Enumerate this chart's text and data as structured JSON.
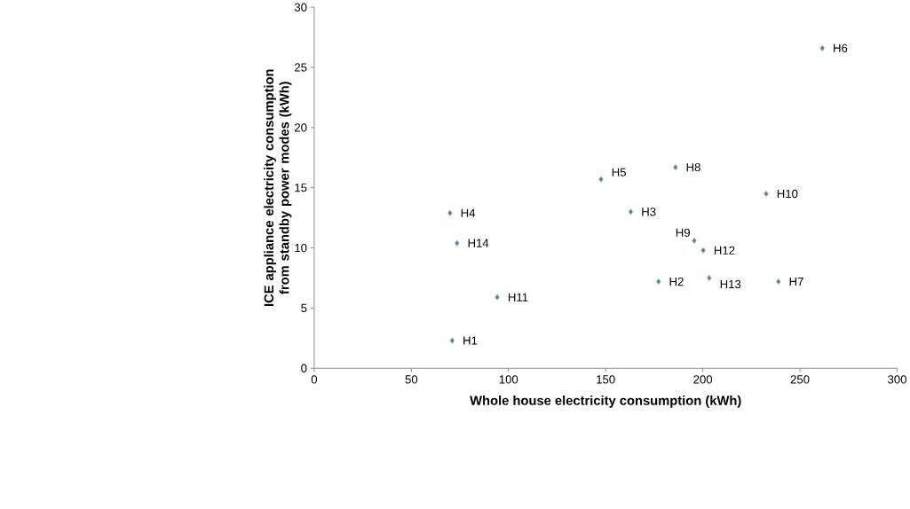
{
  "chart_data": {
    "type": "scatter",
    "xlabel": "Whole house electricity consumption (kWh)",
    "ylabel": "ICE appliance electricity consumption from standby power modes (kWh)",
    "x": [
      71.0,
      177.2,
      162.9,
      69.9,
      147.6,
      261.5,
      238.9,
      185.9,
      195.6,
      232.6,
      94.2,
      200.2,
      203.3,
      73.5
    ],
    "values": [
      2.3,
      7.2,
      13.0,
      12.9,
      15.7,
      26.6,
      7.2,
      16.7,
      10.6,
      14.5,
      5.9,
      9.8,
      7.5,
      10.4
    ],
    "color": "#4f81bd",
    "marker": "diamond",
    "grid": false,
    "xlim": [
      0,
      300
    ],
    "ylim": [
      0,
      30
    ],
    "xticks": [
      0,
      50,
      100,
      150,
      200,
      250,
      300
    ],
    "yticks": [
      0,
      5,
      10,
      15,
      20,
      25,
      30
    ],
    "annotations": [
      {
        "text": "H1",
        "x": 71.0,
        "y": 2.3
      },
      {
        "text": "H2",
        "x": 177.2,
        "y": 7.2
      },
      {
        "text": "H3",
        "x": 162.9,
        "y": 13.0
      },
      {
        "text": "H4",
        "x": 69.9,
        "y": 12.9
      },
      {
        "text": "H5",
        "x": 147.6,
        "y": 15.7
      },
      {
        "text": "H6",
        "x": 261.5,
        "y": 26.6
      },
      {
        "text": "H7",
        "x": 238.9,
        "y": 7.2
      },
      {
        "text": "H8",
        "x": 185.9,
        "y": 16.7
      },
      {
        "text": "H9",
        "x": 195.6,
        "y": 10.6
      },
      {
        "text": "H10",
        "x": 232.6,
        "y": 14.5
      },
      {
        "text": "H11",
        "x": 94.2,
        "y": 5.9
      },
      {
        "text": "H12",
        "x": 200.2,
        "y": 9.8
      },
      {
        "text": "H13",
        "x": 203.3,
        "y": 7.5
      },
      {
        "text": "H14",
        "x": 73.5,
        "y": 10.4
      }
    ]
  }
}
